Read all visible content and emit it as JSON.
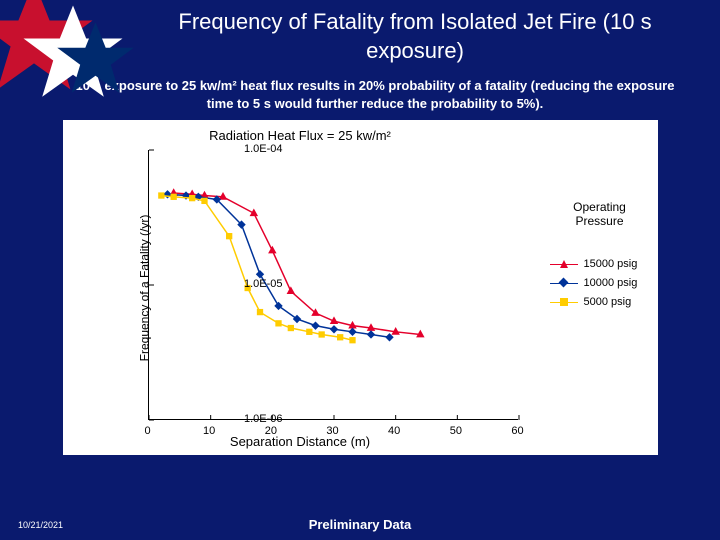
{
  "background_color": "#0a1a6e",
  "title": "Frequency of Fatality from Isolated Jet Fire (10 s exposure)",
  "title_color": "#ffffff",
  "title_fontsize": 22,
  "subtitle": "10 s exposure to 25 kw/m² heat flux results in 20% probability of a fatality (reducing the exposure time to 5 s would further reduce the probability to 5%).",
  "subtitle_color": "#ffffff",
  "subtitle_fontsize": 13,
  "date": "10/21/2021",
  "footer_text": "Preliminary Data",
  "chart": {
    "type": "line",
    "title": "Radiation Heat Flux = 25 kw/m²",
    "title_fontsize": 13,
    "background_color": "#ffffff",
    "xlabel": "Separation Distance (m)",
    "ylabel": "Frequency of a Fatality (/yr)",
    "label_fontsize": 12,
    "yscale": "log",
    "ylim": [
      1e-06,
      0.0001
    ],
    "ytick_labels": [
      "1.0E-06",
      "1.0E-05",
      "1.0E-04"
    ],
    "ytick_values": [
      1e-06,
      1e-05,
      0.0001
    ],
    "xlim": [
      0,
      60
    ],
    "xtick_step": 10,
    "xtick_labels": [
      "0",
      "10",
      "20",
      "30",
      "40",
      "50",
      "60"
    ],
    "grid": false,
    "axis_color": "#000000",
    "legend": {
      "title": "Operating Pressure",
      "position": "right",
      "items": [
        {
          "label": "15000 psig",
          "color": "#e4002b",
          "marker": "triangle"
        },
        {
          "label": "10000 psig",
          "color": "#003399",
          "marker": "diamond"
        },
        {
          "label": "5000 psig",
          "color": "#ffcc00",
          "marker": "square"
        }
      ]
    },
    "series": [
      {
        "name": "15000 psig",
        "color": "#e4002b",
        "marker": "triangle",
        "line_width": 1.5,
        "marker_size": 8,
        "x": [
          4,
          7,
          9,
          12,
          17,
          20,
          23,
          27,
          30,
          33,
          36,
          40,
          44
        ],
        "y": [
          4.8e-05,
          4.7e-05,
          4.6e-05,
          4.5e-05,
          3.4e-05,
          1.8e-05,
          9e-06,
          6.2e-06,
          5.4e-06,
          5e-06,
          4.8e-06,
          4.5e-06,
          4.3e-06
        ]
      },
      {
        "name": "10000 psig",
        "color": "#003399",
        "marker": "diamond",
        "line_width": 1.5,
        "marker_size": 7,
        "x": [
          3,
          6,
          8,
          11,
          15,
          18,
          21,
          24,
          27,
          30,
          33,
          36,
          39
        ],
        "y": [
          4.7e-05,
          4.6e-05,
          4.5e-05,
          4.3e-05,
          2.8e-05,
          1.2e-05,
          7e-06,
          5.6e-06,
          5e-06,
          4.7e-06,
          4.5e-06,
          4.3e-06,
          4.1e-06
        ]
      },
      {
        "name": "5000 psig",
        "color": "#ffcc00",
        "marker": "square",
        "line_width": 1.5,
        "marker_size": 7,
        "x": [
          2,
          4,
          7,
          9,
          13,
          16,
          18,
          21,
          23,
          26,
          28,
          31,
          33
        ],
        "y": [
          4.6e-05,
          4.5e-05,
          4.4e-05,
          4.2e-05,
          2.3e-05,
          9.5e-06,
          6.3e-06,
          5.2e-06,
          4.8e-06,
          4.5e-06,
          4.3e-06,
          4.1e-06,
          3.9e-06
        ]
      }
    ]
  },
  "decoration": {
    "star_color_red": "#c8102e",
    "star_color_white": "#ffffff",
    "star_color_blue": "#002a6e"
  }
}
